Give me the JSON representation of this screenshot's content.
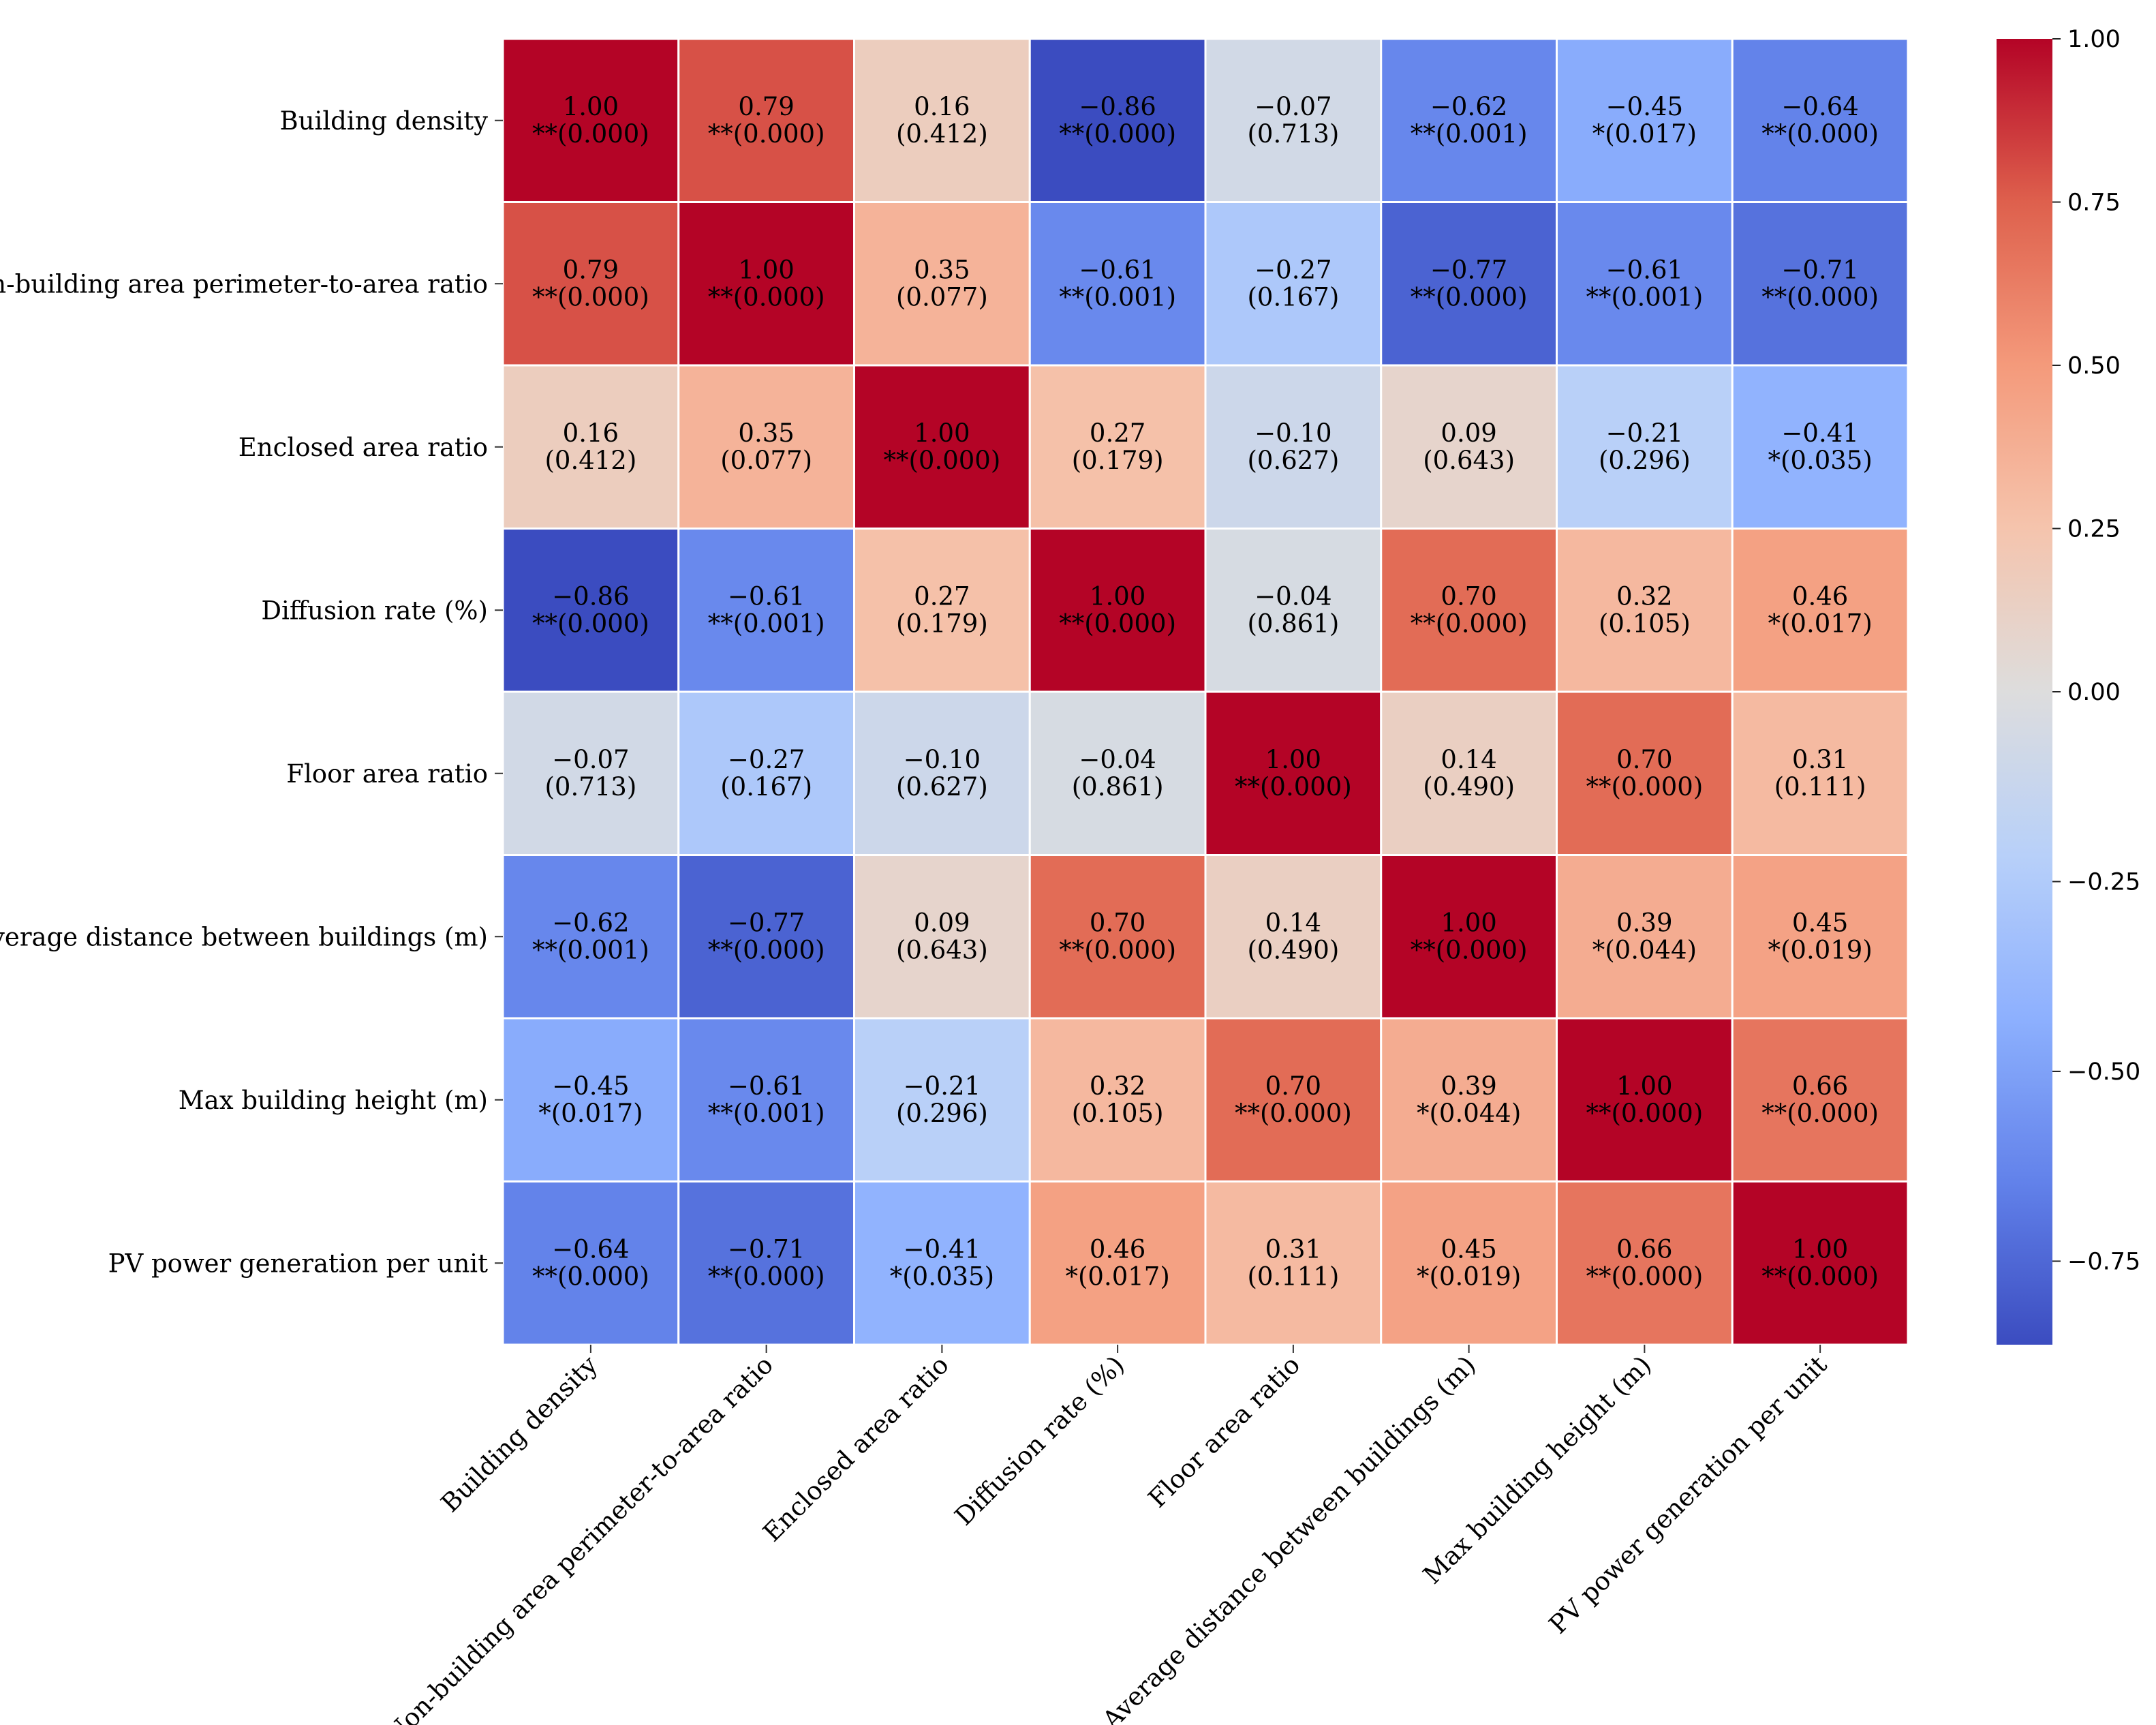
{
  "chart_data": {
    "type": "heatmap",
    "title": "",
    "variables": [
      "Building density",
      "Non-building area perimeter-to-area ratio",
      "Enclosed area ratio",
      "Diffusion rate (%)",
      "Floor area ratio",
      "Average distance between buildings (m)",
      "Max building height (m)",
      "PV power generation per unit"
    ],
    "values": [
      [
        1.0,
        0.79,
        0.16,
        -0.86,
        -0.07,
        -0.62,
        -0.45,
        -0.64
      ],
      [
        0.79,
        1.0,
        0.35,
        -0.61,
        -0.27,
        -0.77,
        -0.61,
        -0.71
      ],
      [
        0.16,
        0.35,
        1.0,
        0.27,
        -0.1,
        0.09,
        -0.21,
        -0.41
      ],
      [
        -0.86,
        -0.61,
        0.27,
        1.0,
        -0.04,
        0.7,
        0.32,
        0.46
      ],
      [
        -0.07,
        -0.27,
        -0.1,
        -0.04,
        1.0,
        0.14,
        0.7,
        0.31
      ],
      [
        -0.62,
        -0.77,
        0.09,
        0.7,
        0.14,
        1.0,
        0.39,
        0.45
      ],
      [
        -0.45,
        -0.61,
        -0.21,
        0.32,
        0.7,
        0.39,
        1.0,
        0.66
      ],
      [
        -0.64,
        -0.71,
        -0.41,
        0.46,
        0.31,
        0.45,
        0.66,
        1.0
      ]
    ],
    "value_labels": [
      [
        "1.00",
        "0.79",
        "0.16",
        "−0.86",
        "−0.07",
        "−0.62",
        "−0.45",
        "−0.64"
      ],
      [
        "0.79",
        "1.00",
        "0.35",
        "−0.61",
        "−0.27",
        "−0.77",
        "−0.61",
        "−0.71"
      ],
      [
        "0.16",
        "0.35",
        "1.00",
        "0.27",
        "−0.10",
        "0.09",
        "−0.21",
        "−0.41"
      ],
      [
        "−0.86",
        "−0.61",
        "0.27",
        "1.00",
        "−0.04",
        "0.70",
        "0.32",
        "0.46"
      ],
      [
        "−0.07",
        "−0.27",
        "−0.10",
        "−0.04",
        "1.00",
        "0.14",
        "0.70",
        "0.31"
      ],
      [
        "−0.62",
        "−0.77",
        "0.09",
        "0.70",
        "0.14",
        "1.00",
        "0.39",
        "0.45"
      ],
      [
        "−0.45",
        "−0.61",
        "−0.21",
        "0.32",
        "0.70",
        "0.39",
        "1.00",
        "0.66"
      ],
      [
        "−0.64",
        "−0.71",
        "−0.41",
        "0.46",
        "0.31",
        "0.45",
        "0.66",
        "1.00"
      ]
    ],
    "p_labels": [
      [
        "**(0.000)",
        "**(0.000)",
        "(0.412)",
        "**(0.000)",
        "(0.713)",
        "**(0.001)",
        "*(0.017)",
        "**(0.000)"
      ],
      [
        "**(0.000)",
        "**(0.000)",
        "(0.077)",
        "**(0.001)",
        "(0.167)",
        "**(0.000)",
        "**(0.001)",
        "**(0.000)"
      ],
      [
        "(0.412)",
        "(0.077)",
        "**(0.000)",
        "(0.179)",
        "(0.627)",
        "(0.643)",
        "(0.296)",
        "*(0.035)"
      ],
      [
        "**(0.000)",
        "**(0.001)",
        "(0.179)",
        "**(0.000)",
        "(0.861)",
        "**(0.000)",
        "(0.105)",
        "*(0.017)"
      ],
      [
        "(0.713)",
        "(0.167)",
        "(0.627)",
        "(0.861)",
        "**(0.000)",
        "(0.490)",
        "**(0.000)",
        "(0.111)"
      ],
      [
        "**(0.001)",
        "**(0.000)",
        "(0.643)",
        "**(0.000)",
        "(0.490)",
        "**(0.000)",
        "*(0.044)",
        "*(0.019)"
      ],
      [
        "*(0.017)",
        "**(0.001)",
        "(0.296)",
        "(0.105)",
        "**(0.000)",
        "*(0.044)",
        "**(0.000)",
        "**(0.000)"
      ],
      [
        "**(0.000)",
        "**(0.000)",
        "*(0.035)",
        "*(0.017)",
        "(0.111)",
        "*(0.019)",
        "**(0.000)",
        "**(0.000)"
      ]
    ],
    "colormap": "coolwarm",
    "vmin": -0.86,
    "vmax": 1.0,
    "colorbar_ticks": [
      1.0,
      0.75,
      0.5,
      0.25,
      0.0,
      -0.25,
      -0.5,
      -0.75
    ],
    "colorbar_tick_labels": [
      "1.00",
      "0.75",
      "0.50",
      "0.25",
      "0.00",
      "−0.25",
      "−0.50",
      "−0.75"
    ]
  }
}
